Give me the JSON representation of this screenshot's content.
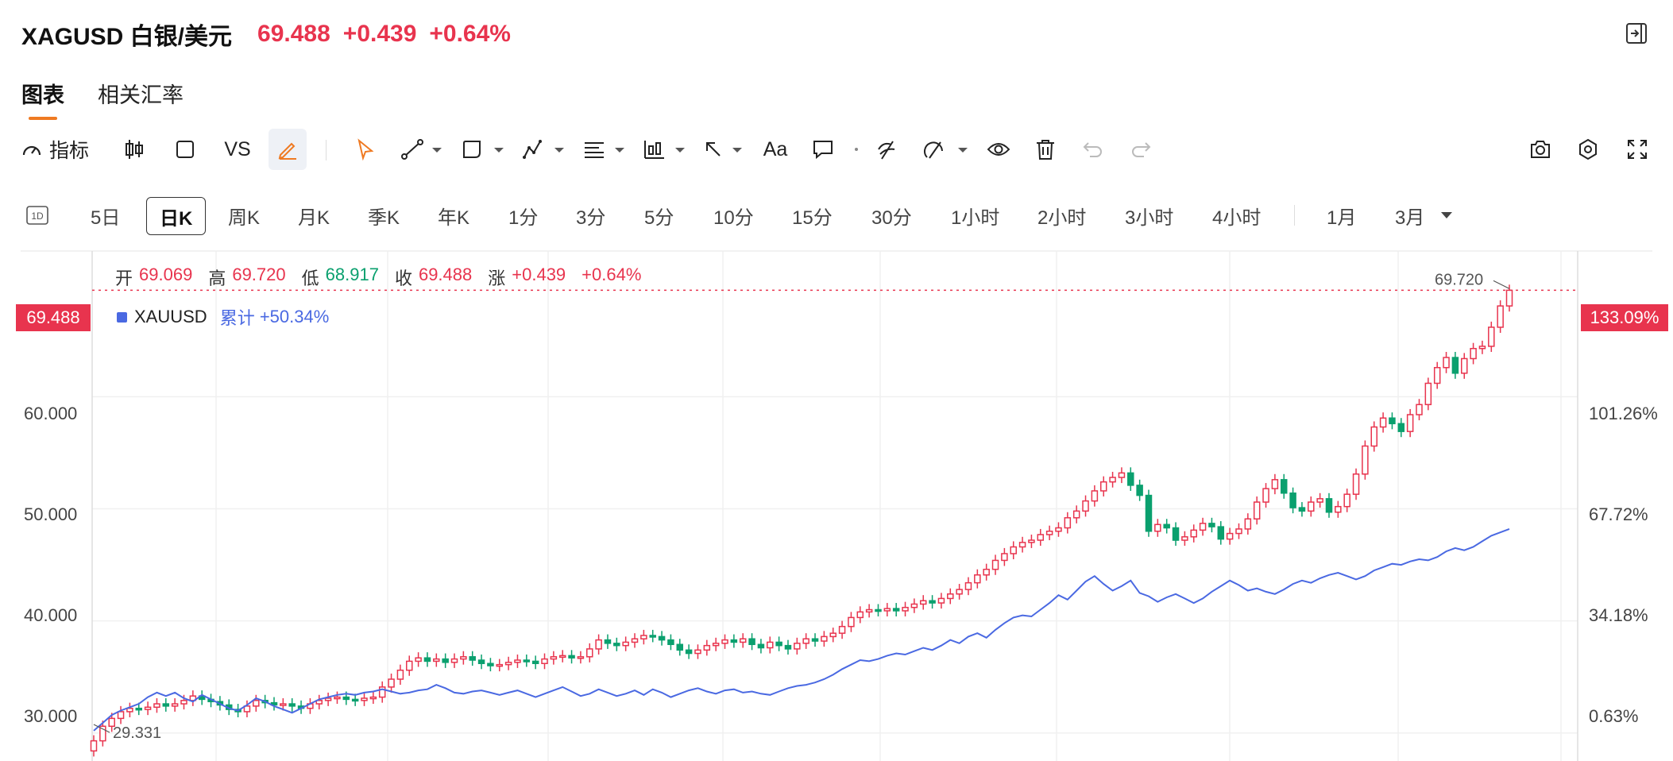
{
  "header": {
    "symbol": "XAGUSD 白银/美元",
    "price": "69.488",
    "change": "+0.439",
    "change_pct": "+0.64%"
  },
  "tabs": [
    "图表",
    "相关汇率"
  ],
  "toolbar": {
    "indicator_label": "指标",
    "vs_label": "VS",
    "text_label": "Aa"
  },
  "timeframes": [
    "5日",
    "日K",
    "周K",
    "月K",
    "季K",
    "年K",
    "1分",
    "3分",
    "5分",
    "10分",
    "15分",
    "30分",
    "1小时",
    "2小时",
    "3小时",
    "4小时",
    "1月",
    "3月"
  ],
  "ohlc": {
    "open_label": "开",
    "open": "69.069",
    "high_label": "高",
    "high": "69.720",
    "low_label": "低",
    "low": "68.917",
    "close_label": "收",
    "close": "69.488",
    "change_label": "涨",
    "change": "+0.439",
    "change_pct": "+0.64%"
  },
  "compare": {
    "name": "XAUUSD",
    "cum_label": "累计",
    "cum_value": "+50.34%"
  },
  "colors": {
    "up": "#e8344e",
    "down": "#0aa06e",
    "compare_line": "#4a69e2",
    "accent": "#ef7a22"
  },
  "chart_data": {
    "type": "candlestick",
    "left_axis": {
      "ticks": [
        "60.000",
        "50.000",
        "40.000",
        "30.000"
      ],
      "range": [
        27.5,
        73.0
      ]
    },
    "right_axis": {
      "ticks": [
        "101.26%",
        "67.72%",
        "34.18%",
        "0.63%"
      ]
    },
    "last_price_label": "69.488",
    "last_pct_label": "133.09%",
    "max_label": "69.720",
    "min_label": "29.331",
    "series": [
      {
        "name": "XAGUSD",
        "closes": [
          29.3,
          30.6,
          31.3,
          31.9,
          32.2,
          32.1,
          32.3,
          32.6,
          32.4,
          32.6,
          32.9,
          33.3,
          33.0,
          32.8,
          32.5,
          32.1,
          31.9,
          32.4,
          32.9,
          32.7,
          32.5,
          32.6,
          32.4,
          32.2,
          32.6,
          32.9,
          33.1,
          33.2,
          33.0,
          32.9,
          33.1,
          33.2,
          34.1,
          34.8,
          35.6,
          36.4,
          36.7,
          36.4,
          36.6,
          36.3,
          36.6,
          36.8,
          36.5,
          36.2,
          36.0,
          36.1,
          36.3,
          36.5,
          36.4,
          36.2,
          36.6,
          36.8,
          36.9,
          36.7,
          36.8,
          37.5,
          38.3,
          38.0,
          37.8,
          38.1,
          38.4,
          38.7,
          38.6,
          38.3,
          37.9,
          37.4,
          37.1,
          37.4,
          37.8,
          38.0,
          38.3,
          38.1,
          38.4,
          37.9,
          37.6,
          38.1,
          37.8,
          37.5,
          38.0,
          38.4,
          38.2,
          38.6,
          38.9,
          39.5,
          40.3,
          40.8,
          41.0,
          40.9,
          41.1,
          40.9,
          41.2,
          41.5,
          41.8,
          41.6,
          42.0,
          42.4,
          42.8,
          43.4,
          44.1,
          44.6,
          45.4,
          46.0,
          46.6,
          47.0,
          47.2,
          47.7,
          48.0,
          48.3,
          49.2,
          49.8,
          50.7,
          51.6,
          52.4,
          52.8,
          53.2,
          52.1,
          51.2,
          48.0,
          48.6,
          48.3,
          47.2,
          47.5,
          48.1,
          48.7,
          48.4,
          47.3,
          47.8,
          48.2,
          49.1,
          50.6,
          51.8,
          52.6,
          51.4,
          50.1,
          49.8,
          50.6,
          50.9,
          49.7,
          50.2,
          51.3,
          53.1,
          55.6,
          57.3,
          58.1,
          57.6,
          56.9,
          58.4,
          59.3,
          61.2,
          62.6,
          63.5,
          62.1,
          63.4,
          64.3,
          64.5,
          66.2,
          68.1,
          69.5
        ]
      },
      {
        "name": "XAUUSD",
        "closes": [
          30.2,
          30.9,
          31.6,
          32.0,
          32.3,
          32.6,
          33.2,
          33.6,
          33.3,
          33.6,
          33.1,
          32.8,
          33.4,
          33.0,
          32.6,
          32.2,
          32.0,
          32.5,
          33.1,
          32.8,
          32.4,
          32.1,
          31.8,
          32.2,
          32.6,
          33.0,
          33.2,
          33.4,
          33.5,
          33.4,
          33.6,
          33.7,
          33.9,
          33.7,
          33.5,
          33.6,
          33.8,
          33.9,
          34.3,
          34.0,
          33.6,
          33.5,
          33.7,
          33.8,
          33.6,
          33.4,
          33.6,
          33.8,
          33.5,
          33.2,
          33.5,
          33.8,
          34.1,
          33.7,
          33.3,
          33.5,
          33.9,
          33.6,
          33.3,
          33.5,
          33.8,
          33.4,
          33.9,
          33.6,
          33.2,
          33.5,
          33.8,
          34.0,
          33.7,
          33.5,
          33.8,
          33.9,
          33.6,
          33.7,
          33.5,
          33.4,
          33.7,
          34.0,
          34.2,
          34.3,
          34.5,
          34.8,
          35.2,
          35.7,
          36.1,
          36.5,
          36.4,
          36.6,
          36.9,
          37.1,
          37.0,
          37.3,
          37.6,
          37.4,
          37.8,
          38.3,
          38.0,
          38.6,
          38.9,
          38.5,
          39.2,
          39.8,
          40.3,
          40.5,
          40.4,
          41.0,
          41.6,
          42.3,
          41.9,
          42.7,
          43.5,
          44.0,
          43.3,
          42.7,
          43.1,
          43.6,
          42.5,
          42.2,
          41.7,
          42.1,
          42.4,
          42.0,
          41.6,
          42.0,
          42.6,
          43.1,
          43.6,
          43.2,
          42.7,
          42.9,
          42.6,
          42.4,
          42.8,
          43.3,
          43.6,
          43.4,
          43.8,
          44.1,
          44.3,
          44.0,
          43.7,
          44.0,
          44.5,
          44.8,
          45.1,
          45.0,
          45.3,
          45.5,
          45.4,
          45.7,
          46.2,
          46.5,
          46.3,
          46.6,
          47.1,
          47.6,
          47.9,
          48.2
        ]
      }
    ],
    "grid": true
  }
}
